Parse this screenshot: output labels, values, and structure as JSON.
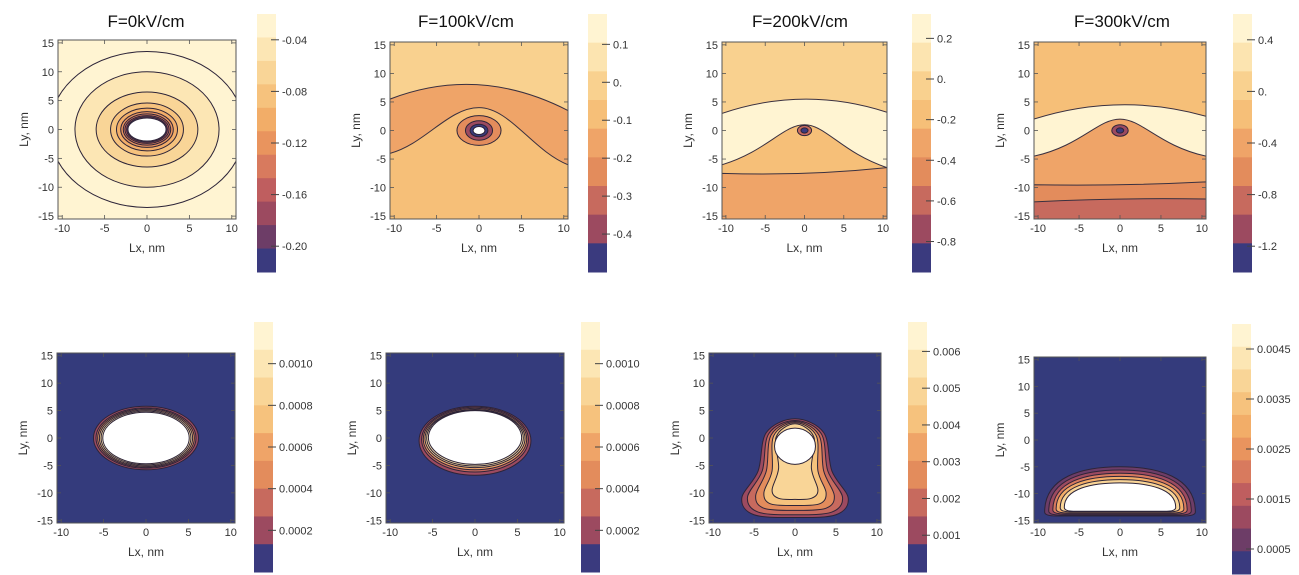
{
  "figure": {
    "titles": [
      "F=0kV/cm",
      "F=100kV/cm",
      "F=200kV/cm",
      "F=300kV/cm"
    ]
  },
  "chart_data": [
    {
      "type": "contour",
      "row": "top",
      "title": "F=0kV/cm",
      "xlabel": "Lx, nm",
      "ylabel": "Ly, nm",
      "xlim": [
        -10.5,
        10.5
      ],
      "ylim": [
        -15.5,
        15.5
      ],
      "xticks": [
        -10,
        -5,
        0,
        5,
        10
      ],
      "yticks": [
        -15,
        -10,
        -5,
        0,
        5,
        10,
        15
      ],
      "grid": false,
      "colorbar": {
        "ticks": [
          "-0.04",
          "-0.08",
          "-0.12",
          "-0.16",
          "-0.20"
        ],
        "colors": [
          "#fff4d2",
          "#fce6b4",
          "#f9d597",
          "#f6c27d",
          "#f2ad68",
          "#e9945e",
          "#d87a5e",
          "#bf5e5f",
          "#9c4a60",
          "#6d3d67",
          "#3a3a7e"
        ],
        "min": -0.22,
        "max": -0.02
      },
      "contours": [
        {
          "shape": "ellipse",
          "cx": 0,
          "cy": 0,
          "rx": 11.5,
          "ry": 13.5,
          "level": 0
        },
        {
          "shape": "ellipse",
          "cx": 0,
          "cy": 0,
          "rx": 8.5,
          "ry": 10.0,
          "level": 1
        },
        {
          "shape": "ellipse",
          "cx": 0,
          "cy": 0,
          "rx": 6.0,
          "ry": 6.5,
          "level": 2
        },
        {
          "shape": "ellipse",
          "cx": 0,
          "cy": 0,
          "rx": 4.3,
          "ry": 4.6,
          "level": 3
        },
        {
          "shape": "ellipse",
          "cx": 0,
          "cy": 0,
          "rx": 3.6,
          "ry": 3.7,
          "level": 4
        },
        {
          "shape": "ellipse",
          "cx": 0,
          "cy": 0,
          "rx": 3.1,
          "ry": 3.1,
          "level": 5
        },
        {
          "shape": "ellipse",
          "cx": 0,
          "cy": 0,
          "rx": 2.8,
          "ry": 2.7,
          "level": 6
        },
        {
          "shape": "ellipse",
          "cx": 0,
          "cy": 0,
          "rx": 2.6,
          "ry": 2.4,
          "level": 7
        },
        {
          "shape": "ellipse",
          "cx": 0,
          "cy": 0,
          "rx": 2.4,
          "ry": 2.2,
          "level": 9
        },
        {
          "shape": "ellipse",
          "cx": 0,
          "cy": 0,
          "rx": 2.25,
          "ry": 2.0,
          "level": -1
        }
      ]
    },
    {
      "type": "contour",
      "row": "top",
      "title": "F=100kV/cm",
      "xlabel": "Lx, nm",
      "ylabel": "Ly, nm",
      "xlim": [
        -10.5,
        10.5
      ],
      "ylim": [
        -15.5,
        15.5
      ],
      "xticks": [
        -10,
        -5,
        0,
        5,
        10
      ],
      "yticks": [
        -15,
        -10,
        -5,
        0,
        5,
        10,
        15
      ],
      "grid": false,
      "colorbar": {
        "ticks": [
          "0.1",
          "0.",
          "-0.1",
          "-0.2",
          "-0.3",
          "-0.4"
        ],
        "colors": [
          "#fff4d2",
          "#fce4b0",
          "#f9d18f",
          "#f6bf78",
          "#efa468",
          "#e38c5c",
          "#c76a5e",
          "#9c4a60",
          "#3a3a7e"
        ],
        "min": -0.5,
        "max": 0.18
      },
      "background_level": 4,
      "bands": [
        {
          "kind": "top",
          "level": 1,
          "left": 14.5,
          "mid": 15.5,
          "right": 12.5
        },
        {
          "kind": "top",
          "level": 2,
          "left": 5.5,
          "mid": 8.0,
          "right": 3.5
        },
        {
          "kind": "bump",
          "level": 3,
          "left": -4.0,
          "right": -6.0,
          "peak": 4.0,
          "width": 4.0
        }
      ],
      "contours": [
        {
          "shape": "ellipse",
          "cx": 0,
          "cy": 0,
          "rx": 2.6,
          "ry": 2.6,
          "level": 5
        },
        {
          "shape": "ellipse",
          "cx": 0,
          "cy": 0,
          "rx": 1.6,
          "ry": 1.7,
          "level": 7
        },
        {
          "shape": "ellipse",
          "cx": 0,
          "cy": 0,
          "rx": 1.05,
          "ry": 1.1,
          "level": 8
        },
        {
          "shape": "ellipse",
          "cx": 0,
          "cy": 0,
          "rx": 0.7,
          "ry": 0.7,
          "level": -1
        }
      ]
    },
    {
      "type": "contour",
      "row": "top",
      "title": "F=200kV/cm",
      "xlabel": "Lx, nm",
      "ylabel": "Ly, nm",
      "xlim": [
        -10.5,
        10.5
      ],
      "ylim": [
        -15.5,
        15.5
      ],
      "xticks": [
        -10,
        -5,
        0,
        5,
        10
      ],
      "yticks": [
        -15,
        -10,
        -5,
        0,
        5,
        10,
        15
      ],
      "grid": false,
      "colorbar": {
        "ticks": [
          "0.2",
          "0.",
          "-0.2",
          "-0.4",
          "-0.6",
          "-0.8"
        ],
        "colors": [
          "#fff4d2",
          "#fce4b0",
          "#f9d18f",
          "#f6bf78",
          "#efa468",
          "#e38c5c",
          "#c76a5e",
          "#9c4a60",
          "#3a3a7e"
        ],
        "min": -0.95,
        "max": 0.32
      },
      "background_level": 0,
      "bands": [
        {
          "kind": "top",
          "level": 1,
          "left": 12.0,
          "mid": 12.5,
          "right": 11.5
        },
        {
          "kind": "top",
          "level": 2,
          "left": 3.0,
          "mid": 5.5,
          "right": 3.2
        },
        {
          "kind": "bump",
          "level": 3,
          "left": -6.0,
          "right": -6.5,
          "peak": 1.0,
          "width": 3.0
        },
        {
          "kind": "bottom",
          "level": 4,
          "left": -7.5,
          "mid": -7.5,
          "right": -6.5
        }
      ],
      "contours": [
        {
          "shape": "ellipse",
          "cx": 0,
          "cy": 0,
          "rx": 0.9,
          "ry": 0.9,
          "level": 6
        },
        {
          "shape": "ellipse",
          "cx": 0,
          "cy": 0,
          "rx": 0.45,
          "ry": 0.45,
          "level": 8
        }
      ]
    },
    {
      "type": "contour",
      "row": "top",
      "title": "F=300kV/cm",
      "xlabel": "Lx, nm",
      "ylabel": "Ly, nm",
      "xlim": [
        -10.5,
        10.5
      ],
      "ylim": [
        -15.5,
        15.5
      ],
      "xticks": [
        -10,
        -5,
        0,
        5,
        10
      ],
      "yticks": [
        -15,
        -10,
        -5,
        0,
        5,
        10,
        15
      ],
      "grid": false,
      "colorbar": {
        "ticks": [
          "0.4",
          "0.",
          "-0.4",
          "-0.8",
          "-1.2"
        ],
        "colors": [
          "#fff4d2",
          "#fce4b0",
          "#f9d18f",
          "#f6bf78",
          "#efa468",
          "#e38c5c",
          "#c76a5e",
          "#9c4a60",
          "#3a3a7e"
        ],
        "min": -1.4,
        "max": 0.6
      },
      "background_level": 0,
      "bands": [
        {
          "kind": "top",
          "level": 1,
          "left": 14.0,
          "mid": 14.5,
          "right": 14.0
        },
        {
          "kind": "top",
          "level": 2,
          "left": 8.0,
          "mid": 8.5,
          "right": 8.0
        },
        {
          "kind": "top",
          "level": 3,
          "left": 2.0,
          "mid": 4.5,
          "right": 2.5
        },
        {
          "kind": "bump",
          "level": 4,
          "left": -4.5,
          "right": -4.5,
          "peak": 2.0,
          "width": 3.0
        },
        {
          "kind": "bottom",
          "level": 5,
          "left": -9.5,
          "mid": -9.5,
          "right": -9.0
        },
        {
          "kind": "bottom",
          "level": 6,
          "left": -12.5,
          "mid": -12.0,
          "right": -12.0
        }
      ],
      "contours": [
        {
          "shape": "ellipse",
          "cx": 0,
          "cy": 0,
          "rx": 1.0,
          "ry": 1.0,
          "level": 7
        },
        {
          "shape": "ellipse",
          "cx": 0,
          "cy": 0,
          "rx": 0.45,
          "ry": 0.45,
          "level": 8
        }
      ]
    },
    {
      "type": "contour",
      "row": "bottom",
      "title": "",
      "xlabel": "Lx, nm",
      "ylabel": "Ly, nm",
      "xlim": [
        -10.5,
        10.5
      ],
      "ylim": [
        -15.5,
        15.5
      ],
      "xticks": [
        -10,
        -5,
        0,
        5,
        10
      ],
      "yticks": [
        -15,
        -10,
        -5,
        0,
        5,
        10,
        15
      ],
      "grid": false,
      "colorbar": {
        "ticks": [
          "0.0010",
          "0.0008",
          "0.0006",
          "0.0004",
          "0.0002"
        ],
        "colors": [
          "#3a3a7e",
          "#9c4a60",
          "#c76a5e",
          "#e38c5c",
          "#efa468",
          "#f6c27d",
          "#f9d597",
          "#fce6b4",
          "#fff4d2"
        ],
        "min": 0.0,
        "max": 0.0012
      },
      "background": "#343b7c",
      "contours": [
        {
          "shape": "ellipse",
          "cx": 0,
          "cy": 0,
          "rx": 6.2,
          "ry": 5.8,
          "level": 1
        },
        {
          "shape": "ellipse",
          "cx": 0,
          "cy": 0,
          "rx": 5.9,
          "ry": 5.5,
          "level": 2
        },
        {
          "shape": "ellipse",
          "cx": 0,
          "cy": 0,
          "rx": 5.7,
          "ry": 5.3,
          "level": 4
        },
        {
          "shape": "ellipse",
          "cx": 0,
          "cy": 0,
          "rx": 5.5,
          "ry": 5.1,
          "level": 6
        },
        {
          "shape": "ellipse",
          "cx": 0,
          "cy": 0,
          "rx": 5.3,
          "ry": 4.9,
          "level": 7
        },
        {
          "shape": "ellipse",
          "cx": 0,
          "cy": 0,
          "rx": 5.1,
          "ry": 4.7,
          "level": -1
        }
      ]
    },
    {
      "type": "contour",
      "row": "bottom",
      "title": "",
      "xlabel": "Lx, nm",
      "ylabel": "Ly, nm",
      "xlim": [
        -10.5,
        10.5
      ],
      "ylim": [
        -15.5,
        15.5
      ],
      "xticks": [
        -10,
        -5,
        0,
        5,
        10
      ],
      "yticks": [
        -15,
        -10,
        -5,
        0,
        5,
        10,
        15
      ],
      "grid": false,
      "colorbar": {
        "ticks": [
          "0.0010",
          "0.0008",
          "0.0006",
          "0.0004",
          "0.0002"
        ],
        "colors": [
          "#3a3a7e",
          "#9c4a60",
          "#c76a5e",
          "#e38c5c",
          "#efa468",
          "#f6c27d",
          "#f9d597",
          "#fce6b4",
          "#fff4d2"
        ],
        "min": 0.0,
        "max": 0.0012
      },
      "background": "#343b7c",
      "contours": [
        {
          "shape": "ellipse",
          "cx": 0,
          "cy": -0.5,
          "rx": 6.6,
          "ry": 6.3,
          "level": 1
        },
        {
          "shape": "ellipse",
          "cx": 0,
          "cy": -0.3,
          "rx": 6.3,
          "ry": 5.9,
          "level": 2
        },
        {
          "shape": "ellipse",
          "cx": 0,
          "cy": -0.2,
          "rx": 6.1,
          "ry": 5.6,
          "level": 4
        },
        {
          "shape": "ellipse",
          "cx": 0,
          "cy": -0.1,
          "rx": 5.9,
          "ry": 5.3,
          "level": 6
        },
        {
          "shape": "ellipse",
          "cx": 0,
          "cy": 0,
          "rx": 5.7,
          "ry": 5.1,
          "level": 7
        },
        {
          "shape": "ellipse",
          "cx": 0,
          "cy": 0.1,
          "rx": 5.5,
          "ry": 4.9,
          "level": -1
        }
      ]
    },
    {
      "type": "contour",
      "row": "bottom",
      "title": "",
      "xlabel": "Lx, nm",
      "ylabel": "Ly, nm",
      "xlim": [
        -10.5,
        10.5
      ],
      "ylim": [
        -15.5,
        15.5
      ],
      "xticks": [
        -10,
        -5,
        0,
        5,
        10
      ],
      "yticks": [
        -15,
        -10,
        -5,
        0,
        5,
        10,
        15
      ],
      "grid": false,
      "colorbar": {
        "ticks": [
          "0.006",
          "0.005",
          "0.004",
          "0.003",
          "0.002",
          "0.001"
        ],
        "colors": [
          "#3a3a7e",
          "#9c4a60",
          "#c76a5e",
          "#e38c5c",
          "#efa468",
          "#f6c27d",
          "#f9d597",
          "#fce6b4",
          "#fff4d2"
        ],
        "min": 0.0,
        "max": 0.0068
      },
      "background": "#343b7c",
      "contours": [
        {
          "shape": "blob",
          "points": [
            [
              0,
              3.5
            ],
            [
              -3.5,
              1.0
            ],
            [
              -4.5,
              -6.0
            ],
            [
              -6.5,
              -11.0
            ],
            [
              -5.0,
              -14.0
            ],
            [
              0,
              -14.5
            ],
            [
              5.0,
              -14.0
            ],
            [
              6.5,
              -11.0
            ],
            [
              4.5,
              -6.0
            ],
            [
              3.5,
              1.0
            ]
          ],
          "level": 1
        },
        {
          "shape": "blob",
          "points": [
            [
              0,
              3.2
            ],
            [
              -3.2,
              0.8
            ],
            [
              -4.0,
              -6.0
            ],
            [
              -5.8,
              -10.8
            ],
            [
              -4.5,
              -13.5
            ],
            [
              0,
              -14.0
            ],
            [
              4.5,
              -13.5
            ],
            [
              5.8,
              -10.8
            ],
            [
              4.0,
              -6.0
            ],
            [
              3.2,
              0.8
            ]
          ],
          "level": 2
        },
        {
          "shape": "blob",
          "points": [
            [
              0,
              3.0
            ],
            [
              -2.9,
              0.6
            ],
            [
              -3.5,
              -6.0
            ],
            [
              -4.8,
              -10.5
            ],
            [
              -3.8,
              -12.8
            ],
            [
              0,
              -13.2
            ],
            [
              3.8,
              -12.8
            ],
            [
              4.8,
              -10.5
            ],
            [
              3.5,
              -6.0
            ],
            [
              2.9,
              0.6
            ]
          ],
          "level": 3
        },
        {
          "shape": "blob",
          "points": [
            [
              0,
              2.8
            ],
            [
              -2.6,
              0.4
            ],
            [
              -2.8,
              -6.0
            ],
            [
              -3.8,
              -10.0
            ],
            [
              -3.0,
              -12.0
            ],
            [
              0,
              -12.3
            ],
            [
              3.0,
              -12.0
            ],
            [
              3.8,
              -10.0
            ],
            [
              2.8,
              -6.0
            ],
            [
              2.6,
              0.4
            ]
          ],
          "level": 5
        },
        {
          "shape": "blob",
          "points": [
            [
              0,
              2.6
            ],
            [
              -2.3,
              0.2
            ],
            [
              -2.0,
              -5.5
            ],
            [
              -2.8,
              -9.5
            ],
            [
              -2.0,
              -11.0
            ],
            [
              0,
              -11.2
            ],
            [
              2.0,
              -11.0
            ],
            [
              2.8,
              -9.5
            ],
            [
              2.0,
              -5.5
            ],
            [
              2.3,
              0.2
            ]
          ],
          "level": 6
        },
        {
          "shape": "ellipse",
          "cx": 0,
          "cy": -1.5,
          "rx": 2.5,
          "ry": 3.3,
          "level": -1
        }
      ]
    },
    {
      "type": "contour",
      "row": "bottom",
      "title": "",
      "xlabel": "Lx, nm",
      "ylabel": "Ly, nm",
      "xlim": [
        -10.5,
        10.5
      ],
      "ylim": [
        -15.5,
        15.5
      ],
      "xticks": [
        -10,
        -5,
        0,
        5,
        10
      ],
      "yticks": [
        -15,
        -10,
        -5,
        0,
        5,
        10,
        15
      ],
      "grid": false,
      "colorbar": {
        "ticks": [
          "0.0045",
          "0.0035",
          "0.0025",
          "0.0015",
          "0.0005"
        ],
        "colors": [
          "#3a3a7e",
          "#6d3d67",
          "#9c4a60",
          "#bf5e5f",
          "#d87a5e",
          "#e9945e",
          "#f2ad68",
          "#f6c27d",
          "#f9d597",
          "#fce6b4",
          "#fff4d2"
        ],
        "min": 0.0,
        "max": 0.005
      },
      "background": "#343b7c",
      "contours": [
        {
          "shape": "dome",
          "cx": 0,
          "base": -14.2,
          "top": -5.0,
          "half": 9.2,
          "level": 1
        },
        {
          "shape": "dome",
          "cx": 0,
          "base": -14.0,
          "top": -5.6,
          "half": 8.7,
          "level": 2
        },
        {
          "shape": "dome",
          "cx": 0,
          "base": -13.8,
          "top": -6.2,
          "half": 8.2,
          "level": 4
        },
        {
          "shape": "dome",
          "cx": 0,
          "base": -13.6,
          "top": -6.8,
          "half": 7.8,
          "level": 6
        },
        {
          "shape": "dome",
          "cx": 0,
          "base": -13.4,
          "top": -7.4,
          "half": 7.3,
          "level": 8
        },
        {
          "shape": "dome",
          "cx": 0,
          "base": -13.3,
          "top": -8.0,
          "half": 6.8,
          "level": -1
        }
      ]
    }
  ]
}
